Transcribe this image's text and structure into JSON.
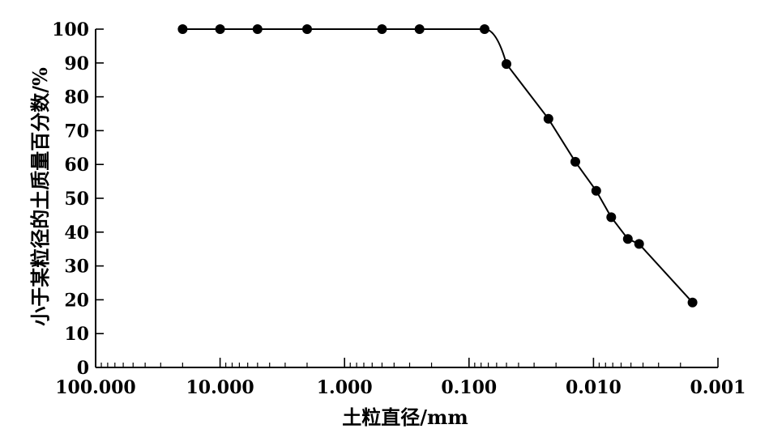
{
  "chart_data": {
    "type": "line",
    "x_scale": "log",
    "x_reversed": true,
    "xlim": [
      100,
      0.001
    ],
    "ylim": [
      0,
      100
    ],
    "x_ticks": [
      100,
      10,
      1,
      0.1,
      0.01,
      0.001
    ],
    "x_tick_labels": [
      "100.000",
      "10.000",
      "1.000",
      "0.100",
      "0.010",
      "0.001"
    ],
    "y_ticks": [
      0,
      10,
      20,
      30,
      40,
      50,
      60,
      70,
      80,
      90,
      100
    ],
    "y_tick_labels": [
      "0",
      "10",
      "20",
      "30",
      "40",
      "50",
      "60",
      "70",
      "80",
      "90",
      "100"
    ],
    "xlabel": "土粒直径/mm",
    "ylabel": "小于某粒径的土质量百分数/%",
    "grid": false,
    "markers": "filled-circle",
    "series": [
      {
        "x": [
          20,
          10,
          5,
          2,
          0.5,
          0.25,
          0.075,
          0.05,
          0.023,
          0.014,
          0.0095,
          0.0072,
          0.0053,
          0.0043,
          0.0016
        ],
        "y": [
          100,
          100,
          100,
          100,
          100,
          100,
          100,
          89.7,
          73.5,
          60.8,
          52.2,
          44.4,
          38.0,
          36.5,
          19.2
        ]
      }
    ]
  }
}
